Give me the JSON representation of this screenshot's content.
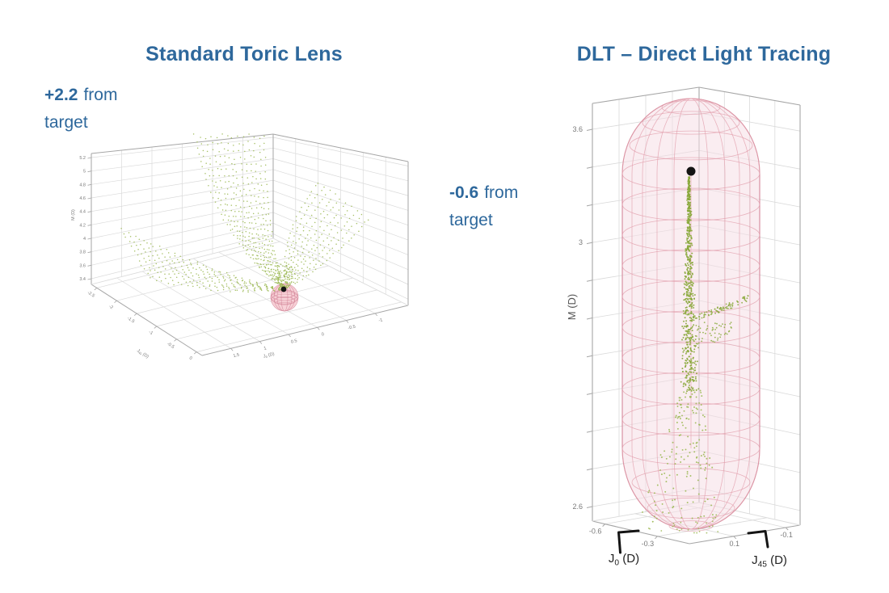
{
  "panels": [
    {
      "id": "standard-toric",
      "title": "Standard Toric Lens",
      "annotation": {
        "highlight": "+2.2",
        "rest": "from",
        "line2": "target"
      }
    },
    {
      "id": "dlt",
      "title": "DLT – Direct Light Tracing",
      "annotation": {
        "highlight": "-0.6",
        "rest": "from",
        "line2": "target"
      }
    }
  ],
  "colors": {
    "heading": "#2e689c",
    "points": "#9cb954",
    "spike": "#8aa93c",
    "wire_pink": "#e29dab",
    "wire_pink_dark": "#d4879a",
    "sphere_fill": "#f7cdd4",
    "capsule_fill": "#f6dfe5",
    "grid": "#dadada",
    "box_edge": "#a6a6a6",
    "tick_text": "#7a7a7a",
    "target_dot": "#141414",
    "bracket": "#141414"
  },
  "chart_data": [
    {
      "type": "scatter",
      "projection": "3d",
      "title": "Standard Toric Lens",
      "annotation": "+2.2 from target",
      "axes": {
        "z": {
          "label": "M (D)",
          "ticks": [
            "5.2",
            "5",
            "4.8",
            "4.6",
            "4.4",
            "4.2",
            "4",
            "3.8",
            "3.6",
            "3.4"
          ]
        },
        "x": {
          "label": "J45 (D)",
          "label_parts": {
            "base": "J",
            "sub": "45",
            "rest": " (D)"
          },
          "ticks": [
            "-2.5",
            "-2",
            "-1.5",
            "-1",
            "-0.5",
            "0"
          ]
        },
        "y": {
          "label": "J0 (D)",
          "label_parts": {
            "base": "J",
            "sub": "0",
            "rest": " (D)"
          },
          "ticks": [
            "1.5",
            "1",
            "0.5",
            "0",
            "-0.5",
            "-1"
          ]
        }
      },
      "series": [
        {
          "name": "simulated refraction outcomes",
          "marker": "dot",
          "color": "#9cb954",
          "description": "green dotted sheets falling from above and fanning from the left, converging onto the target sphere"
        },
        {
          "name": "target tolerance sphere",
          "marker": "wireframe sphere",
          "color": "#d4879a"
        },
        {
          "name": "target point",
          "marker": "black dot",
          "color": "#141414"
        }
      ],
      "legend": false,
      "grid": true
    },
    {
      "type": "scatter",
      "projection": "3d",
      "title": "DLT – Direct Light Tracing",
      "annotation": "-0.6 from target",
      "axes": {
        "z": {
          "label": "M (D)",
          "rows": 11,
          "tick_labels": [
            {
              "row": 0,
              "label": "3.6"
            },
            {
              "row": 3,
              "label": "3"
            },
            {
              "row": 10,
              "label": "2.6"
            }
          ]
        },
        "x": {
          "label": "J0 (D)",
          "label_parts": {
            "base": "J",
            "sub": "0",
            "rest": " (D)"
          },
          "ticks": [
            {
              "label": "-0.6",
              "t": 0.13
            },
            {
              "label": "-0.3",
              "t": 0.67
            }
          ]
        },
        "y": {
          "label": "J45 (D)",
          "label_parts": {
            "base": "J",
            "sub": "45",
            "rest": " (D)"
          },
          "ticks": [
            {
              "label": "0.1",
              "t": 0.4
            },
            {
              "label": "-0.1",
              "t": 0.87
            }
          ]
        }
      },
      "series": [
        {
          "name": "simulated refraction outcomes",
          "marker": "dot",
          "color": "#8aa93c",
          "description": "dense olive spike descending from the black target point, a side branch curving up-right, sparse cloud spreading below"
        },
        {
          "name": "target tolerance capsule",
          "marker": "wireframe capsule",
          "color": "#d4879a"
        },
        {
          "name": "target point",
          "marker": "black dot",
          "color": "#141414"
        }
      ],
      "legend": false,
      "grid": true
    }
  ]
}
